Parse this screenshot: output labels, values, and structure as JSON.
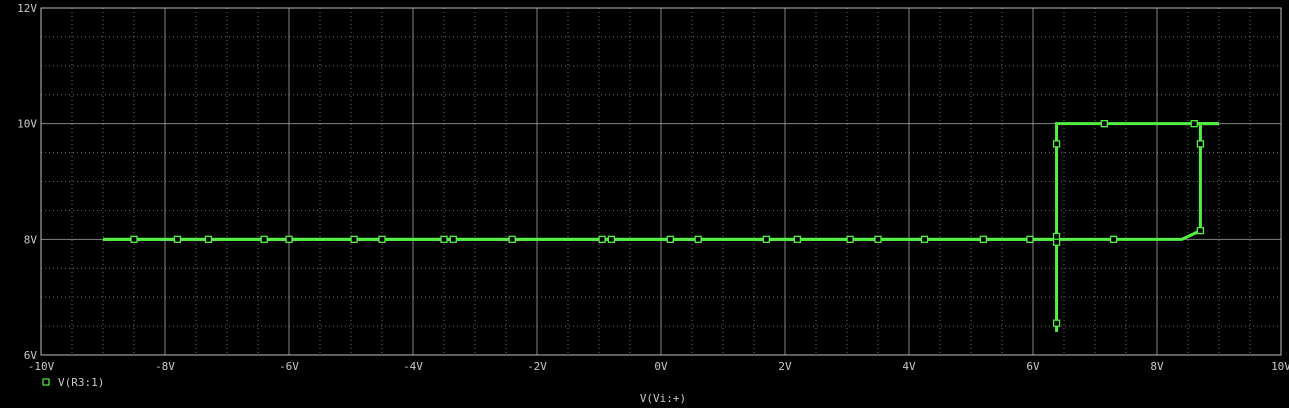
{
  "chart_data": {
    "type": "line",
    "xlabel": "V(Vi:+)",
    "ylabel": "",
    "xlim": [
      -10,
      10
    ],
    "ylim": [
      6,
      12
    ],
    "x_ticks": [
      -10,
      -8,
      -6,
      -4,
      -2,
      0,
      2,
      4,
      6,
      8,
      10
    ],
    "y_ticks": [
      6,
      8,
      10,
      12
    ],
    "x_tick_labels": [
      "-10V",
      "-8V",
      "-6V",
      "-4V",
      "-2V",
      "0V",
      "2V",
      "4V",
      "6V",
      "8V",
      "10V"
    ],
    "y_tick_labels": [
      "6V",
      "8V",
      "10V",
      "12V"
    ],
    "grid": true,
    "background": "#000000",
    "grid_color": "#9a9a9a",
    "legend_position": "bottom-left",
    "series": [
      {
        "name": "V(R3:1)",
        "color": "#55ee44",
        "marker": "open-square",
        "branches": [
          {
            "x": [
              -9.0,
              6.38,
              6.38,
              9.0
            ],
            "y": [
              8.0,
              8.0,
              10.0,
              10.0
            ]
          },
          {
            "x": [
              -9.0,
              8.4,
              8.7,
              8.7,
              9.0
            ],
            "y": [
              8.0,
              8.0,
              8.15,
              10.0,
              10.0
            ]
          },
          {
            "x": [
              6.38,
              6.38
            ],
            "y": [
              6.4,
              8.0
            ]
          }
        ],
        "markers": [
          {
            "x": -8.5,
            "y": 8.0
          },
          {
            "x": -7.8,
            "y": 8.0
          },
          {
            "x": -7.3,
            "y": 8.0
          },
          {
            "x": -6.4,
            "y": 8.0
          },
          {
            "x": -6.0,
            "y": 8.0
          },
          {
            "x": -4.95,
            "y": 8.0
          },
          {
            "x": -4.5,
            "y": 8.0
          },
          {
            "x": -3.5,
            "y": 8.0
          },
          {
            "x": -3.35,
            "y": 8.0
          },
          {
            "x": -2.4,
            "y": 8.0
          },
          {
            "x": -0.95,
            "y": 8.0
          },
          {
            "x": -0.8,
            "y": 8.0
          },
          {
            "x": 0.15,
            "y": 8.0
          },
          {
            "x": 0.6,
            "y": 8.0
          },
          {
            "x": 1.7,
            "y": 8.0
          },
          {
            "x": 2.2,
            "y": 8.0
          },
          {
            "x": 3.05,
            "y": 8.0
          },
          {
            "x": 3.5,
            "y": 8.0
          },
          {
            "x": 4.25,
            "y": 8.0
          },
          {
            "x": 5.2,
            "y": 8.0
          },
          {
            "x": 5.95,
            "y": 8.0
          },
          {
            "x": 7.3,
            "y": 8.0
          },
          {
            "x": 6.38,
            "y": 8.05
          },
          {
            "x": 6.38,
            "y": 7.95
          },
          {
            "x": 6.38,
            "y": 9.65
          },
          {
            "x": 6.38,
            "y": 6.55
          },
          {
            "x": 7.15,
            "y": 10.0
          },
          {
            "x": 8.6,
            "y": 10.0
          },
          {
            "x": 8.7,
            "y": 9.65
          },
          {
            "x": 8.7,
            "y": 8.15
          }
        ]
      }
    ]
  }
}
